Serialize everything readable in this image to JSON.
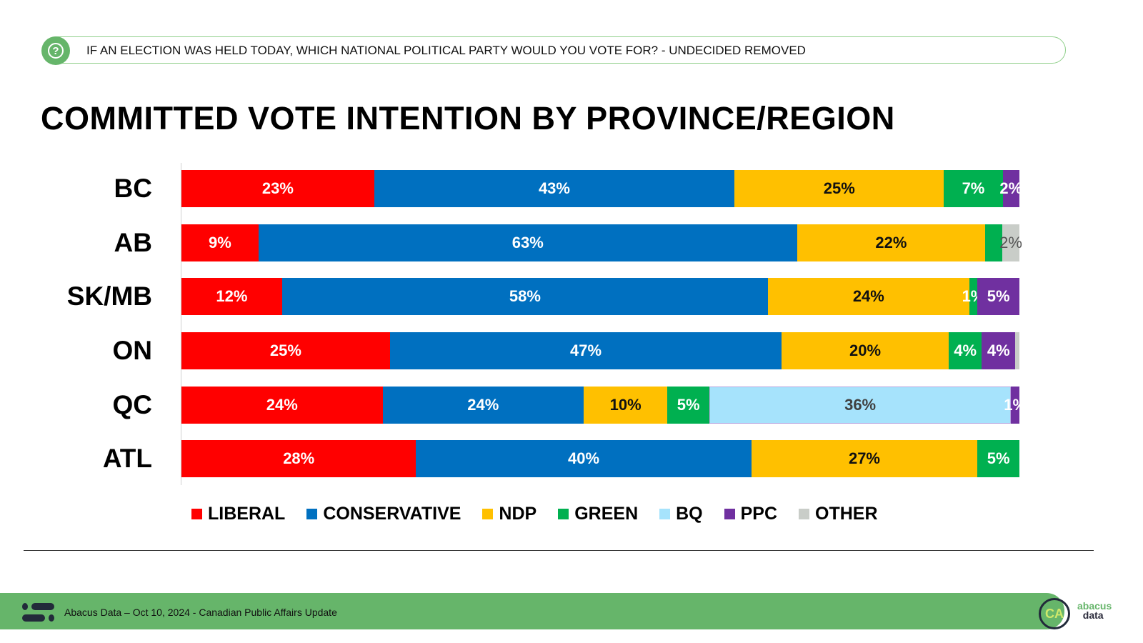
{
  "question": "IF AN ELECTION WAS HELD TODAY, WHICH NATIONAL POLITICAL PARTY WOULD YOU VOTE FOR? - UNDECIDED REMOVED",
  "footer": {
    "text": "Abacus Data – Oct 10, 2024 - Canadian Public Affairs Update",
    "logo_text": "abacus data",
    "badge": "CA"
  },
  "chart_data": {
    "type": "bar",
    "orientation": "horizontal",
    "stacked": true,
    "title": "COMMITTED VOTE INTENTION BY PROVINCE/REGION",
    "legend_position": "bottom",
    "grid": false,
    "parties": [
      {
        "name": "LIBERAL",
        "color": "#ff0000"
      },
      {
        "name": "CONSERVATIVE",
        "color": "#0070c0"
      },
      {
        "name": "NDP",
        "color": "#ffc000"
      },
      {
        "name": "GREEN",
        "color": "#00b050"
      },
      {
        "name": "BQ",
        "color": "#a6e3fc"
      },
      {
        "name": "PPC",
        "color": "#7030a0"
      },
      {
        "name": "OTHER",
        "color": "#c9cdc8"
      }
    ],
    "categories": [
      "BC",
      "AB",
      "SK/MB",
      "ON",
      "QC",
      "ATL"
    ],
    "rows": [
      {
        "region": "BC",
        "segments": [
          {
            "party": "LIBERAL",
            "value": 23,
            "label": "23%"
          },
          {
            "party": "CONSERVATIVE",
            "value": 43,
            "label": "43%"
          },
          {
            "party": "NDP",
            "value": 25,
            "label": "25%"
          },
          {
            "party": "GREEN",
            "value": 7,
            "label": "7%"
          },
          {
            "party": "PPC",
            "value": 2,
            "label": "2%"
          }
        ]
      },
      {
        "region": "AB",
        "segments": [
          {
            "party": "LIBERAL",
            "value": 9,
            "label": "9%"
          },
          {
            "party": "CONSERVATIVE",
            "value": 63,
            "label": "63%"
          },
          {
            "party": "NDP",
            "value": 22,
            "label": "22%"
          },
          {
            "party": "GREEN",
            "value": 2,
            "label": ""
          },
          {
            "party": "OTHER",
            "value": 2,
            "label": "2%"
          }
        ]
      },
      {
        "region": "SK/MB",
        "segments": [
          {
            "party": "LIBERAL",
            "value": 12,
            "label": "12%"
          },
          {
            "party": "CONSERVATIVE",
            "value": 58,
            "label": "58%"
          },
          {
            "party": "NDP",
            "value": 24,
            "label": "24%"
          },
          {
            "party": "GREEN",
            "value": 1,
            "label": "1%"
          },
          {
            "party": "PPC",
            "value": 5,
            "label": "5%"
          }
        ]
      },
      {
        "region": "ON",
        "segments": [
          {
            "party": "LIBERAL",
            "value": 25,
            "label": "25%"
          },
          {
            "party": "CONSERVATIVE",
            "value": 47,
            "label": "47%"
          },
          {
            "party": "NDP",
            "value": 20,
            "label": "20%"
          },
          {
            "party": "GREEN",
            "value": 4,
            "label": "4%"
          },
          {
            "party": "PPC",
            "value": 4,
            "label": "4%"
          },
          {
            "party": "OTHER",
            "value": 0.5,
            "label": ""
          }
        ]
      },
      {
        "region": "QC",
        "segments": [
          {
            "party": "LIBERAL",
            "value": 24,
            "label": "24%"
          },
          {
            "party": "CONSERVATIVE",
            "value": 24,
            "label": "24%"
          },
          {
            "party": "NDP",
            "value": 10,
            "label": "10%"
          },
          {
            "party": "GREEN",
            "value": 5,
            "label": "5%"
          },
          {
            "party": "BQ",
            "value": 36,
            "label": "36%"
          },
          {
            "party": "PPC",
            "value": 1,
            "label": "1%"
          }
        ]
      },
      {
        "region": "ATL",
        "segments": [
          {
            "party": "LIBERAL",
            "value": 28,
            "label": "28%"
          },
          {
            "party": "CONSERVATIVE",
            "value": 40,
            "label": "40%"
          },
          {
            "party": "NDP",
            "value": 27,
            "label": "27%"
          },
          {
            "party": "GREEN",
            "value": 5,
            "label": "5%"
          }
        ]
      }
    ]
  }
}
